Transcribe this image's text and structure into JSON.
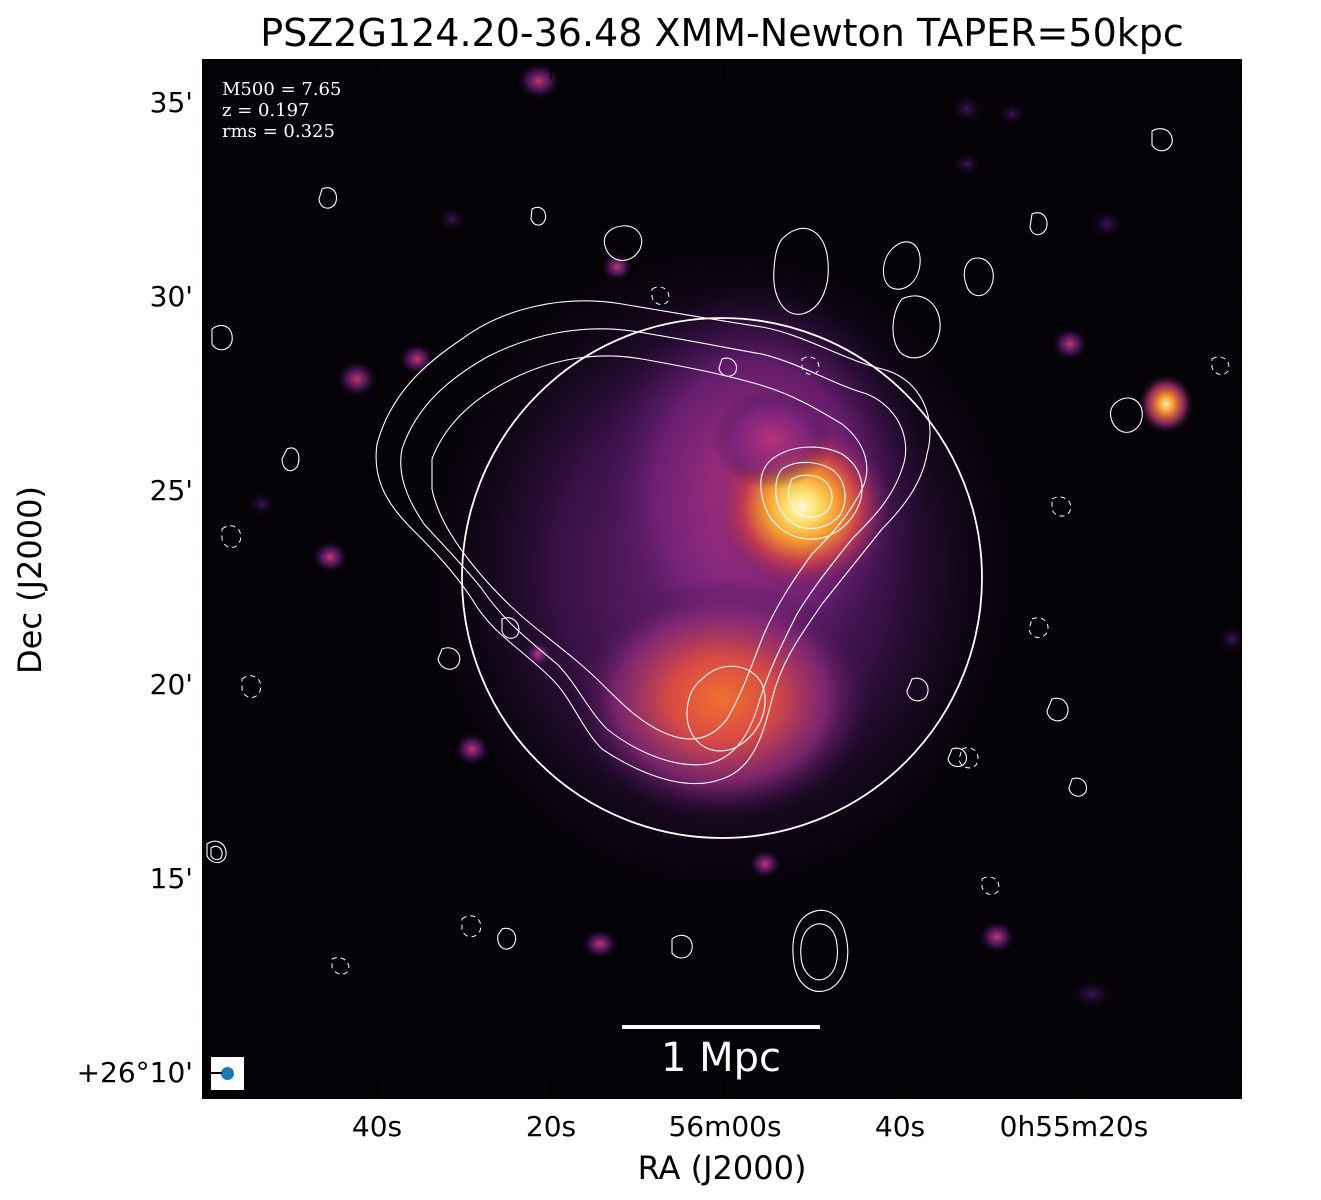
{
  "figure": {
    "title": "PSZ2G124.20-36.48 XMM-Newton TAPER=50kpc",
    "xlabel": "RA (J2000)",
    "ylabel": "Dec (J2000)",
    "yticks": [
      "35'",
      "30'",
      "25'",
      "20'",
      "15'",
      "+26°10'"
    ],
    "xticks": [
      "40s",
      "20s",
      "56m00s",
      "40s",
      "0h55m20s"
    ]
  },
  "annotations": {
    "mass": "M500 = 7.65",
    "redshift": "z = 0.197",
    "rms": "rms = 0.325",
    "scalebar_label": "1 Mpc"
  },
  "colors": {
    "background": "#050208",
    "contour": "#ffffff",
    "beam_marker": "#1f77b4",
    "colormap": "inferno"
  }
}
